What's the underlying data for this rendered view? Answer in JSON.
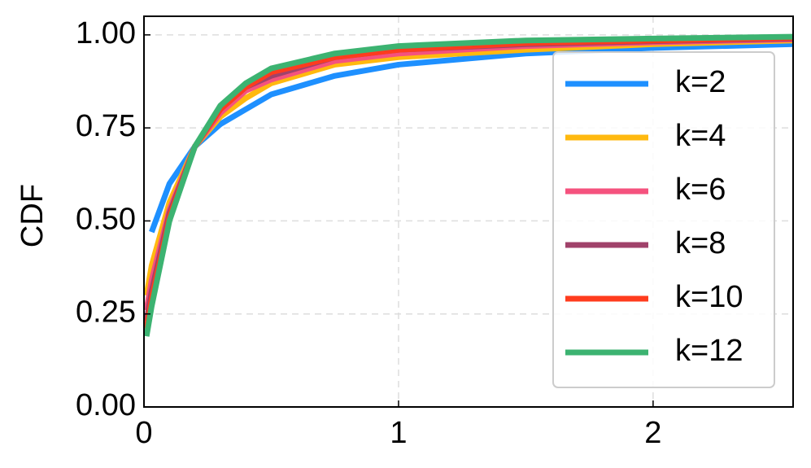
{
  "chart_data": {
    "type": "line",
    "y_label": "CDF",
    "x": [
      0.01,
      0.03,
      0.1,
      0.2,
      0.3,
      0.4,
      0.5,
      0.75,
      1,
      1.5,
      2,
      2.55
    ],
    "series": [
      {
        "name": "k=2",
        "color": "#1e90ff",
        "values": [
          null,
          0.47,
          0.6,
          0.7,
          0.76,
          0.8,
          0.84,
          0.89,
          0.92,
          0.95,
          0.965,
          0.975
        ]
      },
      {
        "name": "k=4",
        "color": "#ffb90f",
        "values": [
          0.3,
          0.38,
          0.55,
          0.7,
          0.78,
          0.83,
          0.87,
          0.92,
          0.94,
          0.96,
          0.975,
          0.985
        ]
      },
      {
        "name": "k=6",
        "color": "#f5527e",
        "values": [
          0.26,
          0.34,
          0.53,
          0.7,
          0.79,
          0.85,
          0.88,
          0.93,
          0.95,
          0.97,
          0.98,
          0.988
        ]
      },
      {
        "name": "k=8",
        "color": "#a0426a",
        "values": [
          0.23,
          0.31,
          0.52,
          0.7,
          0.8,
          0.86,
          0.89,
          0.94,
          0.96,
          0.975,
          0.983,
          0.99
        ]
      },
      {
        "name": "k=10",
        "color": "#ff3c1e",
        "values": [
          0.21,
          0.29,
          0.51,
          0.7,
          0.8,
          0.86,
          0.9,
          0.94,
          0.96,
          0.978,
          0.985,
          0.992
        ]
      },
      {
        "name": "k=12",
        "color": "#3cb371",
        "values": [
          0.19,
          0.27,
          0.5,
          0.7,
          0.81,
          0.87,
          0.91,
          0.95,
          0.97,
          0.985,
          0.99,
          0.995
        ]
      }
    ],
    "xlim": [
      0,
      2.55
    ],
    "xticks": [
      0,
      1,
      2
    ],
    "ylim": [
      0,
      1.05
    ],
    "yticks": [
      {
        "value": 0,
        "label": "0.00"
      },
      {
        "value": 0.25,
        "label": "0.25"
      },
      {
        "value": 0.5,
        "label": "0.50"
      },
      {
        "value": 0.75,
        "label": "0.75"
      },
      {
        "value": 1,
        "label": "1.00"
      }
    ],
    "grid": true,
    "legend": "upper right"
  }
}
